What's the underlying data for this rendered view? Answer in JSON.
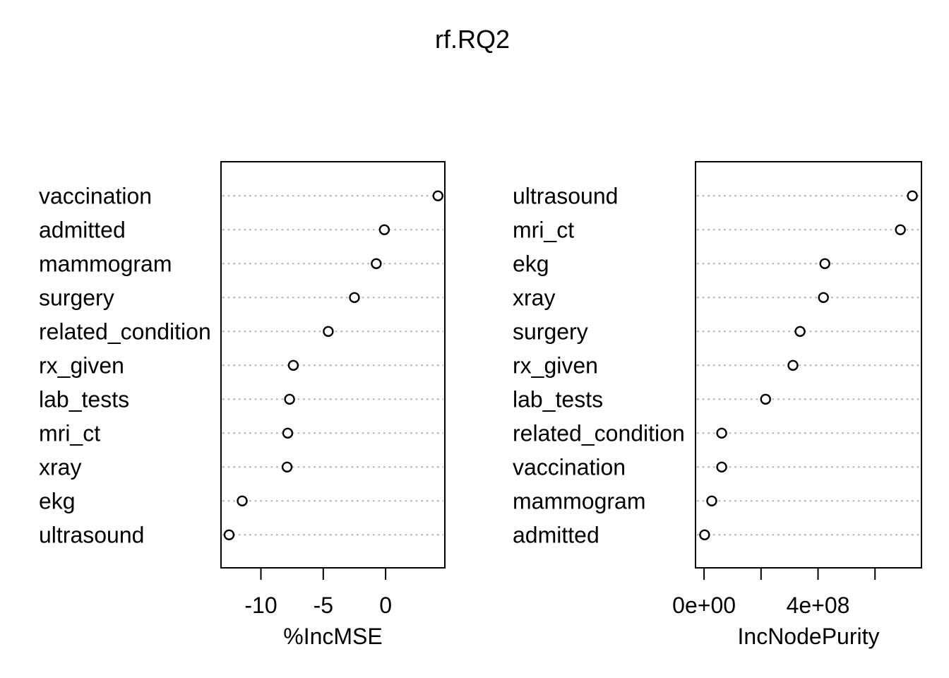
{
  "title": "rf.RQ2",
  "style": {
    "background_color": "#ffffff",
    "foreground_color": "#000000",
    "grid_color": "#b4b4b4",
    "point_fill": "#ffffff",
    "point_stroke": "#000000"
  },
  "chart_data": [
    {
      "type": "scatter",
      "subtype": "dotchart",
      "panel": "left",
      "xlabel": "%IncMSE",
      "xlim": [
        -13.2,
        4.75
      ],
      "grid": "horizontal-dotted",
      "legend": "none",
      "xticks": [
        {
          "value": -10,
          "label": "-10"
        },
        {
          "value": -5,
          "label": "-5"
        },
        {
          "value": 0,
          "label": "0"
        }
      ],
      "points": [
        {
          "label": "vaccination",
          "value": 4.2
        },
        {
          "label": "admitted",
          "value": -0.1
        },
        {
          "label": "mammogram",
          "value": -0.75
        },
        {
          "label": "surgery",
          "value": -2.5
        },
        {
          "label": "related_condition",
          "value": -4.6
        },
        {
          "label": "rx_given",
          "value": -7.4
        },
        {
          "label": "lab_tests",
          "value": -7.7
        },
        {
          "label": "mri_ct",
          "value": -7.85
        },
        {
          "label": "xray",
          "value": -7.9
        },
        {
          "label": "ekg",
          "value": -11.5
        },
        {
          "label": "ultrasound",
          "value": -12.55
        }
      ]
    },
    {
      "type": "scatter",
      "subtype": "dotchart",
      "panel": "right",
      "xlabel": "IncNodePurity",
      "xlim": [
        -30000000,
        763000000
      ],
      "grid": "horizontal-dotted",
      "legend": "none",
      "xticks": [
        {
          "value": 0,
          "label": "0e+00"
        },
        {
          "value": 200000000,
          "label": ""
        },
        {
          "value": 400000000,
          "label": "4e+08"
        },
        {
          "value": 600000000,
          "label": ""
        }
      ],
      "points": [
        {
          "label": "ultrasound",
          "value": 731000000
        },
        {
          "label": "mri_ct",
          "value": 689000000
        },
        {
          "label": "ekg",
          "value": 424000000
        },
        {
          "label": "xray",
          "value": 419000000
        },
        {
          "label": "surgery",
          "value": 337000000
        },
        {
          "label": "rx_given",
          "value": 312000000
        },
        {
          "label": "lab_tests",
          "value": 216000000
        },
        {
          "label": "related_condition",
          "value": 62000000
        },
        {
          "label": "vaccination",
          "value": 62000000
        },
        {
          "label": "mammogram",
          "value": 27000000
        },
        {
          "label": "admitted",
          "value": 2000000
        }
      ]
    }
  ]
}
